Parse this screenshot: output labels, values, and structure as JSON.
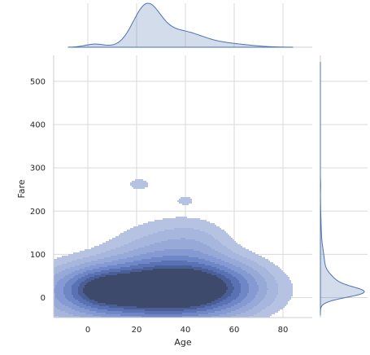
{
  "chart_data": {
    "type": "kde-joint",
    "xlabel": "Age",
    "ylabel": "Fare",
    "xlim": [
      -14,
      92
    ],
    "ylim": [
      -46,
      560
    ],
    "x_ticks": [
      0,
      20,
      40,
      60,
      80
    ],
    "y_ticks": [
      0,
      100,
      200,
      300,
      400,
      500
    ],
    "grid": true,
    "fill_color": "#4c72b0",
    "marginal_line_color": "#4c72b0",
    "joint_density_blobs": [
      {
        "age": 24,
        "fare": 14,
        "wa": 24,
        "wf": 42,
        "w": 1.0
      },
      {
        "age": 6,
        "fare": 20,
        "wa": 9,
        "wf": 28,
        "w": 0.45
      },
      {
        "age": 40,
        "fare": 22,
        "wa": 14,
        "wf": 36,
        "w": 0.55
      },
      {
        "age": 56,
        "fare": 30,
        "wa": 12,
        "wf": 40,
        "w": 0.22
      },
      {
        "age": 30,
        "fare": 75,
        "wa": 14,
        "wf": 60,
        "w": 0.22
      },
      {
        "age": 44,
        "fare": 120,
        "wa": 10,
        "wf": 40,
        "w": 0.12
      },
      {
        "age": 21,
        "fare": 262,
        "wa": 4,
        "wf": 12,
        "w": 0.09
      },
      {
        "age": 40,
        "fare": 225,
        "wa": 3.2,
        "wf": 10,
        "w": 0.075
      }
    ],
    "marginal_age_density": [
      {
        "age": 3,
        "d": 0.08,
        "s": 4
      },
      {
        "age": 24,
        "d": 1.0,
        "s": 5.5
      },
      {
        "age": 38,
        "d": 0.4,
        "s": 9
      },
      {
        "age": 58,
        "d": 0.08,
        "s": 9
      }
    ],
    "marginal_fare_density": [
      {
        "fare": 12,
        "d": 1.0,
        "s": 12
      },
      {
        "fare": 35,
        "d": 0.35,
        "s": 18
      },
      {
        "fare": 80,
        "d": 0.1,
        "s": 30
      },
      {
        "fare": 150,
        "d": 0.02,
        "s": 40
      },
      {
        "fare": 260,
        "d": 0.006,
        "s": 10
      }
    ]
  }
}
